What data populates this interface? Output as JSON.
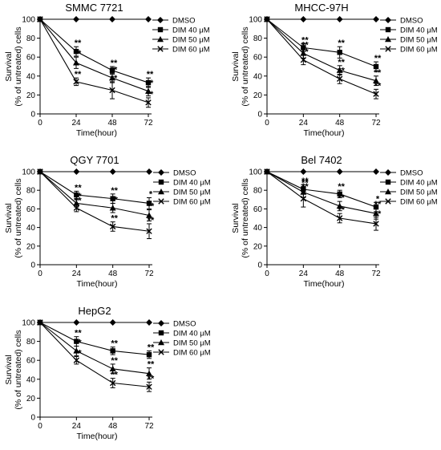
{
  "figure": {
    "legend_entries": [
      "DMSO",
      "DIM 40 μM",
      "DIM 50 μM",
      "DIM 60 μM"
    ],
    "star_single": "*",
    "star_double": "**"
  },
  "chart_data": [
    {
      "type": "line",
      "title": "SMMC 7721",
      "xlabel": "Time(hour)",
      "ylabel": [
        "Survival",
        "(% of untreated) cells"
      ],
      "x": [
        0,
        24,
        48,
        72
      ],
      "xlim": [
        0,
        72
      ],
      "ylim": [
        0,
        100
      ],
      "yticks": [
        0,
        20,
        40,
        60,
        80,
        100
      ],
      "legend": "right",
      "series": [
        {
          "name": "DMSO",
          "marker": "diamond",
          "values": [
            100,
            100,
            100,
            100
          ],
          "errors": [
            0,
            0,
            0,
            0
          ],
          "stars": [
            "",
            "",
            "",
            ""
          ]
        },
        {
          "name": "DIM 40 μM",
          "marker": "square",
          "values": [
            100,
            66,
            46,
            33
          ],
          "errors": [
            0,
            5,
            4,
            5
          ],
          "stars": [
            "",
            "**",
            "**",
            "**"
          ]
        },
        {
          "name": "DIM 50 μM",
          "marker": "triangle",
          "values": [
            100,
            54,
            38,
            24
          ],
          "errors": [
            0,
            6,
            5,
            5
          ],
          "stars": [
            "",
            "**",
            "**",
            "**"
          ]
        },
        {
          "name": "DIM 60 μM",
          "marker": "x",
          "values": [
            100,
            34,
            25,
            12
          ],
          "errors": [
            0,
            4,
            9,
            5
          ],
          "stars": [
            "",
            "**",
            "**",
            "**"
          ]
        }
      ]
    },
    {
      "type": "line",
      "title": "MHCC-97H",
      "xlabel": "Time(hour)",
      "ylabel": [
        "Survival",
        "(% of untreated) cells"
      ],
      "x": [
        0,
        24,
        48,
        72
      ],
      "xlim": [
        0,
        72
      ],
      "ylim": [
        0,
        100
      ],
      "yticks": [
        0,
        20,
        40,
        60,
        80,
        100
      ],
      "legend": "right",
      "series": [
        {
          "name": "DMSO",
          "marker": "diamond",
          "values": [
            100,
            100,
            100,
            100
          ],
          "errors": [
            0,
            0,
            0,
            0
          ],
          "stars": [
            "",
            "",
            "",
            ""
          ]
        },
        {
          "name": "DIM 40 μM",
          "marker": "square",
          "values": [
            100,
            70,
            65,
            50
          ],
          "errors": [
            0,
            4,
            6,
            5
          ],
          "stars": [
            "",
            "**",
            "**",
            "**"
          ]
        },
        {
          "name": "DIM 50 μM",
          "marker": "triangle",
          "values": [
            100,
            64,
            46,
            35
          ],
          "errors": [
            0,
            5,
            5,
            5
          ],
          "stars": [
            "",
            "**",
            "**",
            "**"
          ]
        },
        {
          "name": "DIM 60 μM",
          "marker": "x",
          "values": [
            100,
            57,
            37,
            21
          ],
          "errors": [
            0,
            5,
            5,
            5
          ],
          "stars": [
            "",
            "**",
            "**",
            "**"
          ]
        }
      ]
    },
    {
      "type": "line",
      "title": "QGY 7701",
      "xlabel": "Time(hour)",
      "ylabel": [
        "Survival",
        "(% of untreated) cells"
      ],
      "x": [
        0,
        24,
        48,
        72
      ],
      "xlim": [
        0,
        72
      ],
      "ylim": [
        0,
        100
      ],
      "yticks": [
        0,
        20,
        40,
        60,
        80,
        100
      ],
      "legend": "right",
      "series": [
        {
          "name": "DMSO",
          "marker": "diamond",
          "values": [
            100,
            100,
            100,
            100
          ],
          "errors": [
            0,
            0,
            0,
            0
          ],
          "stars": [
            "",
            "",
            "",
            ""
          ]
        },
        {
          "name": "DIM 40 μM",
          "marker": "square",
          "values": [
            100,
            75,
            71,
            66
          ],
          "errors": [
            0,
            4,
            5,
            6
          ],
          "stars": [
            "",
            "**",
            "**",
            "*"
          ]
        },
        {
          "name": "DIM 50 μM",
          "marker": "triangle",
          "values": [
            100,
            66,
            61,
            53
          ],
          "errors": [
            0,
            4,
            5,
            6
          ],
          "stars": [
            "",
            "**",
            "**",
            "**"
          ]
        },
        {
          "name": "DIM 60 μM",
          "marker": "x",
          "values": [
            100,
            61,
            41,
            36
          ],
          "errors": [
            0,
            4,
            5,
            8
          ],
          "stars": [
            "",
            "**",
            "**",
            "**"
          ]
        }
      ]
    },
    {
      "type": "line",
      "title": "Bel 7402",
      "xlabel": "Time(hour)",
      "ylabel": [
        "Survival",
        "(% of untreated) cells"
      ],
      "x": [
        0,
        24,
        48,
        72
      ],
      "xlim": [
        0,
        72
      ],
      "ylim": [
        0,
        100
      ],
      "yticks": [
        0,
        20,
        40,
        60,
        80,
        100
      ],
      "legend": "right",
      "series": [
        {
          "name": "DMSO",
          "marker": "diamond",
          "values": [
            100,
            100,
            100,
            100
          ],
          "errors": [
            0,
            0,
            0,
            0
          ],
          "stars": [
            "",
            "",
            "",
            ""
          ]
        },
        {
          "name": "DIM 40 μM",
          "marker": "square",
          "values": [
            100,
            81,
            76,
            62
          ],
          "errors": [
            0,
            5,
            4,
            5
          ],
          "stars": [
            "",
            "**",
            "**",
            "*"
          ]
        },
        {
          "name": "DIM 50 μM",
          "marker": "triangle",
          "values": [
            100,
            78,
            63,
            55
          ],
          "errors": [
            0,
            6,
            5,
            6
          ],
          "stars": [
            "",
            "**",
            "**",
            "**"
          ]
        },
        {
          "name": "DIM 60 μM",
          "marker": "x",
          "values": [
            100,
            71,
            50,
            44
          ],
          "errors": [
            0,
            9,
            5,
            7
          ],
          "stars": [
            "",
            "**",
            "**",
            "**"
          ]
        }
      ]
    },
    {
      "type": "line",
      "title": "HepG2",
      "xlabel": "Time(hour)",
      "ylabel": [
        "Survival",
        "(% of untreated) cells"
      ],
      "x": [
        0,
        24,
        48,
        72
      ],
      "xlim": [
        0,
        72
      ],
      "ylim": [
        0,
        100
      ],
      "yticks": [
        0,
        20,
        40,
        60,
        80,
        100
      ],
      "legend": "right",
      "series": [
        {
          "name": "DMSO",
          "marker": "diamond",
          "values": [
            100,
            100,
            100,
            100
          ],
          "errors": [
            0,
            0,
            0,
            0
          ],
          "stars": [
            "",
            "",
            "",
            ""
          ]
        },
        {
          "name": "DIM 40 μM",
          "marker": "square",
          "values": [
            100,
            80,
            70,
            66
          ],
          "errors": [
            0,
            5,
            4,
            4
          ],
          "stars": [
            "",
            "**",
            "**",
            "**"
          ]
        },
        {
          "name": "DIM 50 μM",
          "marker": "triangle",
          "values": [
            100,
            70,
            51,
            46
          ],
          "errors": [
            0,
            5,
            5,
            6
          ],
          "stars": [
            "",
            "**",
            "**",
            "**"
          ]
        },
        {
          "name": "DIM 60 μM",
          "marker": "x",
          "values": [
            100,
            60,
            36,
            32
          ],
          "errors": [
            0,
            4,
            5,
            5
          ],
          "stars": [
            "",
            "**",
            "**",
            "**"
          ]
        }
      ]
    }
  ]
}
